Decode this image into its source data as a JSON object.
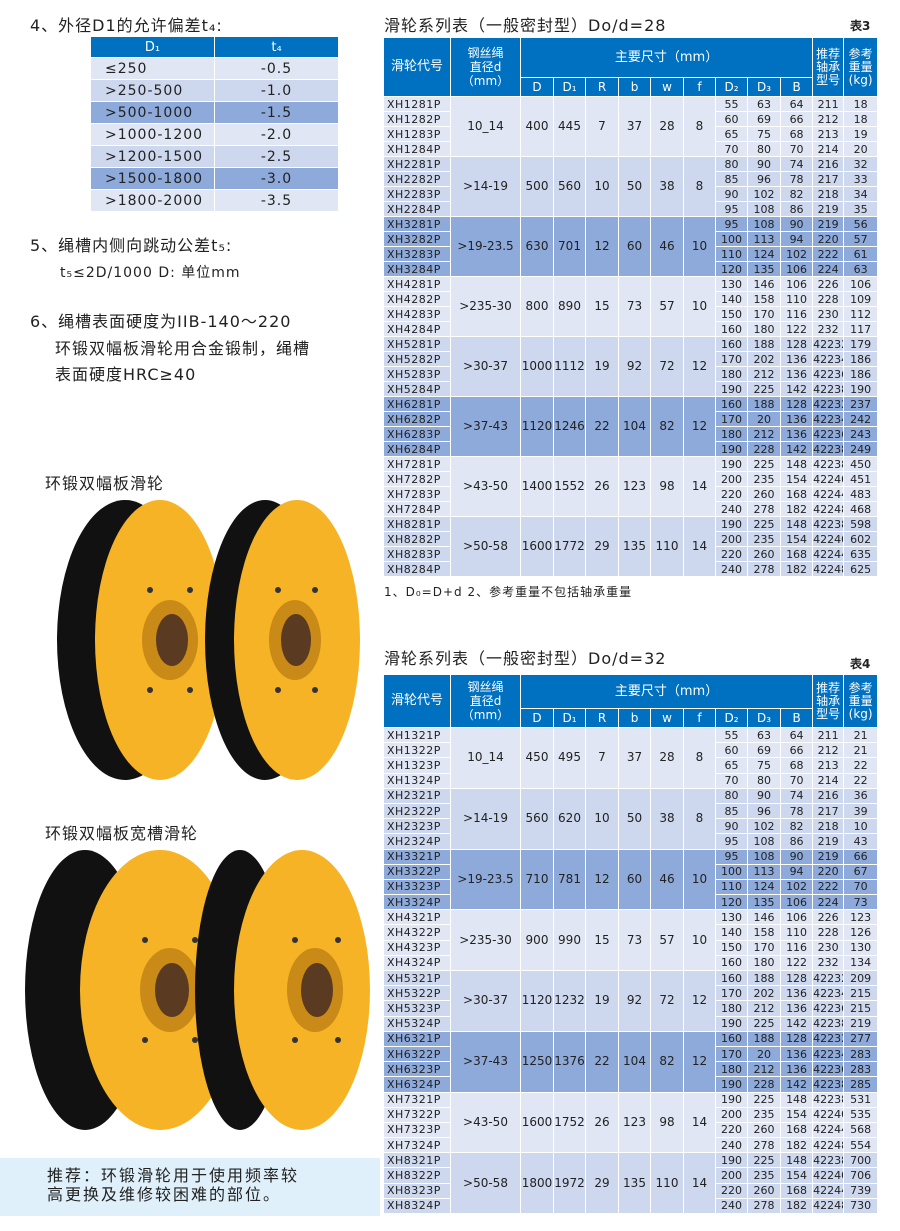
{
  "left": {
    "sec4_title": "4、外径D1的允许偏差t₄:",
    "tol_table": {
      "headers": [
        "D₁",
        "t₄"
      ],
      "rows": [
        [
          "≤250",
          "-0.5"
        ],
        [
          ">250-500",
          "-1.0"
        ],
        [
          ">500-1000",
          "-1.5"
        ],
        [
          ">1000-1200",
          "-2.0"
        ],
        [
          ">1200-1500",
          "-2.5"
        ],
        [
          ">1500-1800",
          "-3.0"
        ],
        [
          ">1800-2000",
          "-3.5"
        ]
      ]
    },
    "sec5_title": "5、绳槽内侧向跳动公差t₅:",
    "sec5_formula": "t₅≤2D/1000  D: 单位mm",
    "sec6_title": "6、绳槽表面硬度为IIB-140～220",
    "sec6_line2": "环锻双幅板滑轮用合金锻制，绳槽",
    "sec6_line3": "表面硬度HRC≥40",
    "photo1_label": "环锻双幅板滑轮",
    "photo2_label": "环锻双幅板宽槽滑轮",
    "recommend": "推荐：环锻滑轮用于使用频率较\n高更换及维修较困难的部位。"
  },
  "colors": {
    "header": "#0070c0",
    "light": "#e0e6f3",
    "mid": "#cdd8ee",
    "dark": "#8eaadb",
    "pulley": "#f6b325",
    "band": "#dff0fb"
  },
  "headers": {
    "code": "滑轮代号",
    "rope": "钢丝绳\n直径d（mm）",
    "main": "主要尺寸（mm）",
    "sub": [
      "D",
      "D₁",
      "R",
      "b",
      "w",
      "f",
      "D₂",
      "D₃",
      "B"
    ],
    "bearing": "推荐\n轴承\n型号",
    "weight": "参考\n重量\n(kg)"
  },
  "table3": {
    "title": "滑轮系列表（一般密封型）Do/d=28",
    "label": "表3",
    "groups": [
      {
        "codes": [
          "XH1281P",
          "XH1282P",
          "XH1283P",
          "XH1284P"
        ],
        "rope": "10_14",
        "dims": [
          "400",
          "445",
          "7",
          "37",
          "28",
          "8"
        ],
        "rows": [
          [
            "55",
            "63",
            "64",
            "211",
            "18"
          ],
          [
            "60",
            "69",
            "66",
            "212",
            "18"
          ],
          [
            "65",
            "75",
            "68",
            "213",
            "19"
          ],
          [
            "70",
            "80",
            "70",
            "214",
            "20"
          ]
        ]
      },
      {
        "codes": [
          "XH2281P",
          "XH2282P",
          "XH2283P",
          "XH2284P"
        ],
        "rope": ">14-19",
        "dims": [
          "500",
          "560",
          "10",
          "50",
          "38",
          "8"
        ],
        "rows": [
          [
            "80",
            "90",
            "74",
            "216",
            "32"
          ],
          [
            "85",
            "96",
            "78",
            "217",
            "33"
          ],
          [
            "90",
            "102",
            "82",
            "218",
            "34"
          ],
          [
            "95",
            "108",
            "86",
            "219",
            "35"
          ]
        ]
      },
      {
        "codes": [
          "XH3281P",
          "XH3282P",
          "XH3283P",
          "XH3284P"
        ],
        "rope": ">19-23.5",
        "dims": [
          "630",
          "701",
          "12",
          "60",
          "46",
          "10"
        ],
        "rows": [
          [
            "95",
            "108",
            "90",
            "219",
            "56"
          ],
          [
            "100",
            "113",
            "94",
            "220",
            "57"
          ],
          [
            "110",
            "124",
            "102",
            "222",
            "61"
          ],
          [
            "120",
            "135",
            "106",
            "224",
            "63"
          ]
        ]
      },
      {
        "codes": [
          "XH4281P",
          "XH4282P",
          "XH4283P",
          "XH4284P"
        ],
        "rope": ">235-30",
        "dims": [
          "800",
          "890",
          "15",
          "73",
          "57",
          "10"
        ],
        "rows": [
          [
            "130",
            "146",
            "106",
            "226",
            "106"
          ],
          [
            "140",
            "158",
            "110",
            "228",
            "109"
          ],
          [
            "150",
            "170",
            "116",
            "230",
            "112"
          ],
          [
            "160",
            "180",
            "122",
            "232",
            "117"
          ]
        ]
      },
      {
        "codes": [
          "XH5281P",
          "XH5282P",
          "XH5283P",
          "XH5284P"
        ],
        "rope": ">30-37",
        "dims": [
          "1000",
          "1112",
          "19",
          "92",
          "72",
          "12"
        ],
        "rows": [
          [
            "160",
            "188",
            "128",
            "42232",
            "179"
          ],
          [
            "170",
            "202",
            "136",
            "42234",
            "186"
          ],
          [
            "180",
            "212",
            "136",
            "42236",
            "186"
          ],
          [
            "190",
            "225",
            "142",
            "42238",
            "190"
          ]
        ]
      },
      {
        "codes": [
          "XH6281P",
          "XH6282P",
          "XH6283P",
          "XH6284P"
        ],
        "rope": ">37-43",
        "dims": [
          "1120",
          "1246",
          "22",
          "104",
          "82",
          "12"
        ],
        "rows": [
          [
            "160",
            "188",
            "128",
            "42232",
            "237"
          ],
          [
            "170",
            "20",
            "136",
            "42234",
            "242"
          ],
          [
            "180",
            "212",
            "136",
            "42236",
            "243"
          ],
          [
            "190",
            "228",
            "142",
            "42238",
            "249"
          ]
        ]
      },
      {
        "codes": [
          "XH7281P",
          "XH7282P",
          "XH7283P",
          "XH7284P"
        ],
        "rope": ">43-50",
        "dims": [
          "1400",
          "1552",
          "26",
          "123",
          "98",
          "14"
        ],
        "rows": [
          [
            "190",
            "225",
            "148",
            "42238",
            "450"
          ],
          [
            "200",
            "235",
            "154",
            "42240",
            "451"
          ],
          [
            "220",
            "260",
            "168",
            "42244",
            "483"
          ],
          [
            "240",
            "278",
            "182",
            "42248",
            "468"
          ]
        ]
      },
      {
        "codes": [
          "XH8281P",
          "XH8282P",
          "XH8283P",
          "XH8284P"
        ],
        "rope": ">50-58",
        "dims": [
          "1600",
          "1772",
          "29",
          "135",
          "110",
          "14"
        ],
        "rows": [
          [
            "190",
            "225",
            "148",
            "42238",
            "598"
          ],
          [
            "200",
            "235",
            "154",
            "42240",
            "602"
          ],
          [
            "220",
            "260",
            "168",
            "42244",
            "635"
          ],
          [
            "240",
            "278",
            "182",
            "42248",
            "625"
          ]
        ]
      }
    ],
    "note": "1、D₀=D+d    2、参考重量不包括轴承重量"
  },
  "table4": {
    "title": "滑轮系列表（一般密封型）Do/d=32",
    "label": "表4",
    "groups": [
      {
        "codes": [
          "XH1321P",
          "XH1322P",
          "XH1323P",
          "XH1324P"
        ],
        "rope": "10_14",
        "dims": [
          "450",
          "495",
          "7",
          "37",
          "28",
          "8"
        ],
        "rows": [
          [
            "55",
            "63",
            "64",
            "211",
            "21"
          ],
          [
            "60",
            "69",
            "66",
            "212",
            "21"
          ],
          [
            "65",
            "75",
            "68",
            "213",
            "22"
          ],
          [
            "70",
            "80",
            "70",
            "214",
            "22"
          ]
        ]
      },
      {
        "codes": [
          "XH2321P",
          "XH2322P",
          "XH2323P",
          "XH2324P"
        ],
        "rope": ">14-19",
        "dims": [
          "560",
          "620",
          "10",
          "50",
          "38",
          "8"
        ],
        "rows": [
          [
            "80",
            "90",
            "74",
            "216",
            "36"
          ],
          [
            "85",
            "96",
            "78",
            "217",
            "39"
          ],
          [
            "90",
            "102",
            "82",
            "218",
            "10"
          ],
          [
            "95",
            "108",
            "86",
            "219",
            "43"
          ]
        ]
      },
      {
        "codes": [
          "XH3321P",
          "XH3322P",
          "XH3323P",
          "XH3324P"
        ],
        "rope": ">19-23.5",
        "dims": [
          "710",
          "781",
          "12",
          "60",
          "46",
          "10"
        ],
        "rows": [
          [
            "95",
            "108",
            "90",
            "219",
            "66"
          ],
          [
            "100",
            "113",
            "94",
            "220",
            "67"
          ],
          [
            "110",
            "124",
            "102",
            "222",
            "70"
          ],
          [
            "120",
            "135",
            "106",
            "224",
            "73"
          ]
        ]
      },
      {
        "codes": [
          "XH4321P",
          "XH4322P",
          "XH4323P",
          "XH4324P"
        ],
        "rope": ">235-30",
        "dims": [
          "900",
          "990",
          "15",
          "73",
          "57",
          "10"
        ],
        "rows": [
          [
            "130",
            "146",
            "106",
            "226",
            "123"
          ],
          [
            "140",
            "158",
            "110",
            "228",
            "126"
          ],
          [
            "150",
            "170",
            "116",
            "230",
            "130"
          ],
          [
            "160",
            "180",
            "122",
            "232",
            "134"
          ]
        ]
      },
      {
        "codes": [
          "XH5321P",
          "XH5322P",
          "XH5323P",
          "XH5324P"
        ],
        "rope": ">30-37",
        "dims": [
          "1120",
          "1232",
          "19",
          "92",
          "72",
          "12"
        ],
        "rows": [
          [
            "160",
            "188",
            "128",
            "42232",
            "209"
          ],
          [
            "170",
            "202",
            "136",
            "42234",
            "215"
          ],
          [
            "180",
            "212",
            "136",
            "42236",
            "215"
          ],
          [
            "190",
            "225",
            "142",
            "42238",
            "219"
          ]
        ]
      },
      {
        "codes": [
          "XH6321P",
          "XH6322P",
          "XH6323P",
          "XH6324P"
        ],
        "rope": ">37-43",
        "dims": [
          "1250",
          "1376",
          "22",
          "104",
          "82",
          "12"
        ],
        "rows": [
          [
            "160",
            "188",
            "128",
            "42232",
            "277"
          ],
          [
            "170",
            "20",
            "136",
            "42234",
            "283"
          ],
          [
            "180",
            "212",
            "136",
            "42236",
            "283"
          ],
          [
            "190",
            "228",
            "142",
            "42238",
            "285"
          ]
        ]
      },
      {
        "codes": [
          "XH7321P",
          "XH7322P",
          "XH7323P",
          "XH7324P"
        ],
        "rope": ">43-50",
        "dims": [
          "1600",
          "1752",
          "26",
          "123",
          "98",
          "14"
        ],
        "rows": [
          [
            "190",
            "225",
            "148",
            "42238",
            "531"
          ],
          [
            "200",
            "235",
            "154",
            "42240",
            "535"
          ],
          [
            "220",
            "260",
            "168",
            "42244",
            "568"
          ],
          [
            "240",
            "278",
            "182",
            "42248",
            "554"
          ]
        ]
      },
      {
        "codes": [
          "XH8321P",
          "XH8322P",
          "XH8323P",
          "XH8324P"
        ],
        "rope": ">50-58",
        "dims": [
          "1800",
          "1972",
          "29",
          "135",
          "110",
          "14"
        ],
        "rows": [
          [
            "190",
            "225",
            "148",
            "42238",
            "700"
          ],
          [
            "200",
            "235",
            "154",
            "42240",
            "706"
          ],
          [
            "220",
            "260",
            "168",
            "42244",
            "739"
          ],
          [
            "240",
            "278",
            "182",
            "42248",
            "730"
          ]
        ]
      }
    ]
  }
}
